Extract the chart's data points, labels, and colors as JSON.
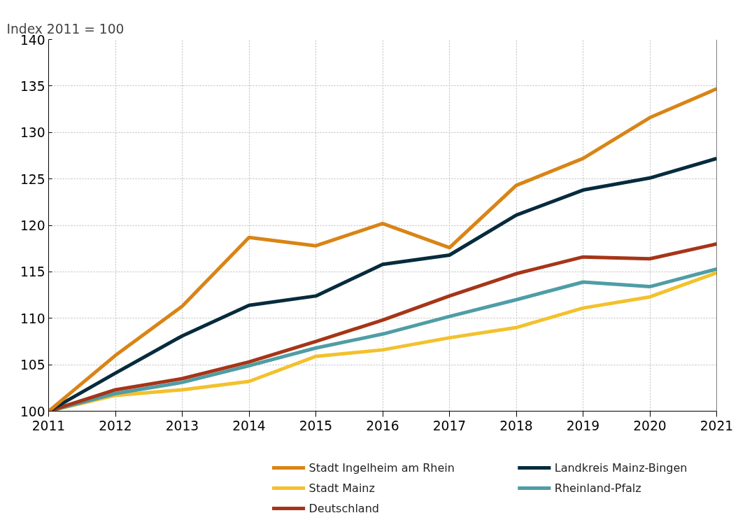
{
  "chart_data": {
    "type": "line",
    "ylabel": "Index 2011 = 100",
    "x": [
      2011,
      2012,
      2013,
      2014,
      2015,
      2016,
      2017,
      2018,
      2019,
      2020,
      2021
    ],
    "xlim": [
      2011,
      2021
    ],
    "xticks": [
      2011,
      2012,
      2013,
      2014,
      2015,
      2016,
      2017,
      2018,
      2019,
      2020,
      2021
    ],
    "ylim": [
      100,
      140
    ],
    "yticks": [
      100,
      105,
      110,
      115,
      120,
      125,
      130,
      135,
      140
    ],
    "grid": true,
    "legend": "bottom",
    "marker": "none",
    "line_style": "solid",
    "series": [
      {
        "name": "Stadt Ingelheim am Rhein",
        "color": "#d98415",
        "values": [
          100,
          106.0,
          111.3,
          118.7,
          117.8,
          120.2,
          117.6,
          124.3,
          127.2,
          131.6,
          134.7
        ]
      },
      {
        "name": "Landkreis Mainz-Bingen",
        "color": "#062b3d",
        "values": [
          100,
          104.1,
          108.1,
          111.4,
          112.4,
          115.8,
          116.8,
          121.1,
          123.8,
          125.1,
          127.2
        ]
      },
      {
        "name": "Stadt Mainz",
        "color": "#f3c12c",
        "values": [
          100,
          101.7,
          102.3,
          103.2,
          105.9,
          106.6,
          107.9,
          109.0,
          111.1,
          112.3,
          114.9
        ]
      },
      {
        "name": "Rheinland-Pfalz",
        "color": "#4f9da6",
        "values": [
          100,
          101.9,
          103.1,
          104.9,
          106.8,
          108.3,
          110.2,
          112.0,
          113.9,
          113.4,
          115.3
        ]
      },
      {
        "name": "Deutschland",
        "color": "#a63518",
        "values": [
          100,
          102.3,
          103.5,
          105.3,
          107.5,
          109.8,
          112.4,
          114.8,
          116.6,
          116.4,
          118.0
        ]
      }
    ]
  }
}
